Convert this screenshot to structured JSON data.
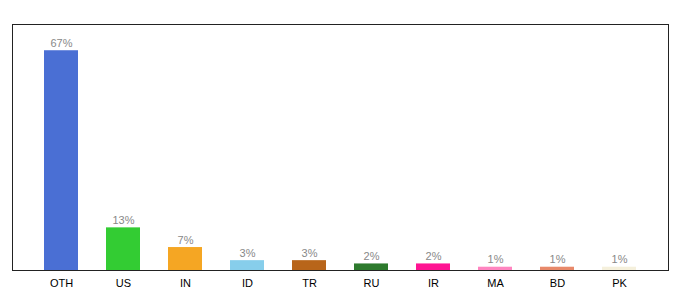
{
  "chart_data": {
    "type": "bar",
    "categories": [
      "OTH",
      "US",
      "IN",
      "ID",
      "TR",
      "RU",
      "IR",
      "MA",
      "BD",
      "PK"
    ],
    "values": [
      67,
      13,
      7,
      3,
      3,
      2,
      2,
      1,
      1,
      1
    ],
    "value_labels": [
      "67%",
      "13%",
      "7%",
      "3%",
      "3%",
      "2%",
      "2%",
      "1%",
      "1%",
      "1%"
    ],
    "colors": [
      "#4a6fd4",
      "#33cc33",
      "#f5a623",
      "#87ceeb",
      "#b8651a",
      "#2d7a2d",
      "#ff1493",
      "#ff85c0",
      "#e8896a",
      "#f5f0dc"
    ],
    "ylim": [
      0,
      75
    ],
    "data_labels": true,
    "tick_labels": "x",
    "grid": false
  }
}
